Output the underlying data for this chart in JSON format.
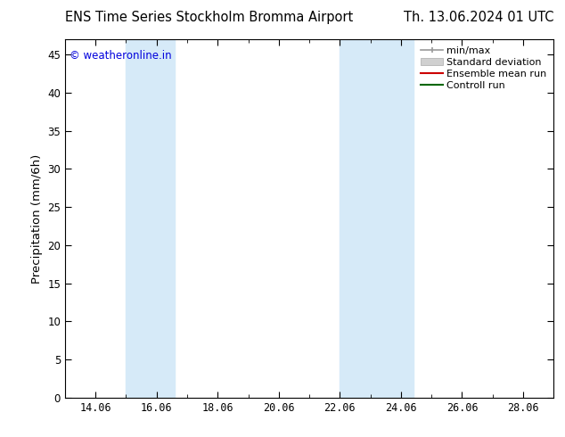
{
  "title_left": "ENS Time Series Stockholm Bromma Airport",
  "title_right": "Th. 13.06.2024 01 UTC",
  "ylabel": "Precipitation (mm/6h)",
  "xlim": [
    13.0,
    29.0
  ],
  "ylim": [
    0,
    47
  ],
  "yticks": [
    0,
    5,
    10,
    15,
    20,
    25,
    30,
    35,
    40,
    45
  ],
  "xtick_positions": [
    14,
    16,
    18,
    20,
    22,
    24,
    26,
    28
  ],
  "xtick_labels": [
    "14.06",
    "16.06",
    "18.06",
    "20.06",
    "22.06",
    "24.06",
    "26.06",
    "28.06"
  ],
  "watermark": "© weatheronline.in",
  "watermark_color": "#0000dd",
  "background_color": "#ffffff",
  "shaded_regions": [
    {
      "x_start": 15.0,
      "x_end": 16.6,
      "color": "#d6eaf8",
      "alpha": 1.0
    },
    {
      "x_start": 22.0,
      "x_end": 23.0,
      "color": "#d6eaf8",
      "alpha": 1.0
    },
    {
      "x_start": 23.0,
      "x_end": 24.4,
      "color": "#d6eaf8",
      "alpha": 1.0
    }
  ],
  "legend_labels": [
    "min/max",
    "Standard deviation",
    "Ensemble mean run",
    "Controll run"
  ],
  "legend_colors_line": [
    "#999999",
    "#cccccc",
    "#cc0000",
    "#006600"
  ],
  "title_fontsize": 10.5,
  "tick_fontsize": 8.5,
  "ylabel_fontsize": 9.5,
  "legend_fontsize": 8,
  "watermark_fontsize": 8.5
}
